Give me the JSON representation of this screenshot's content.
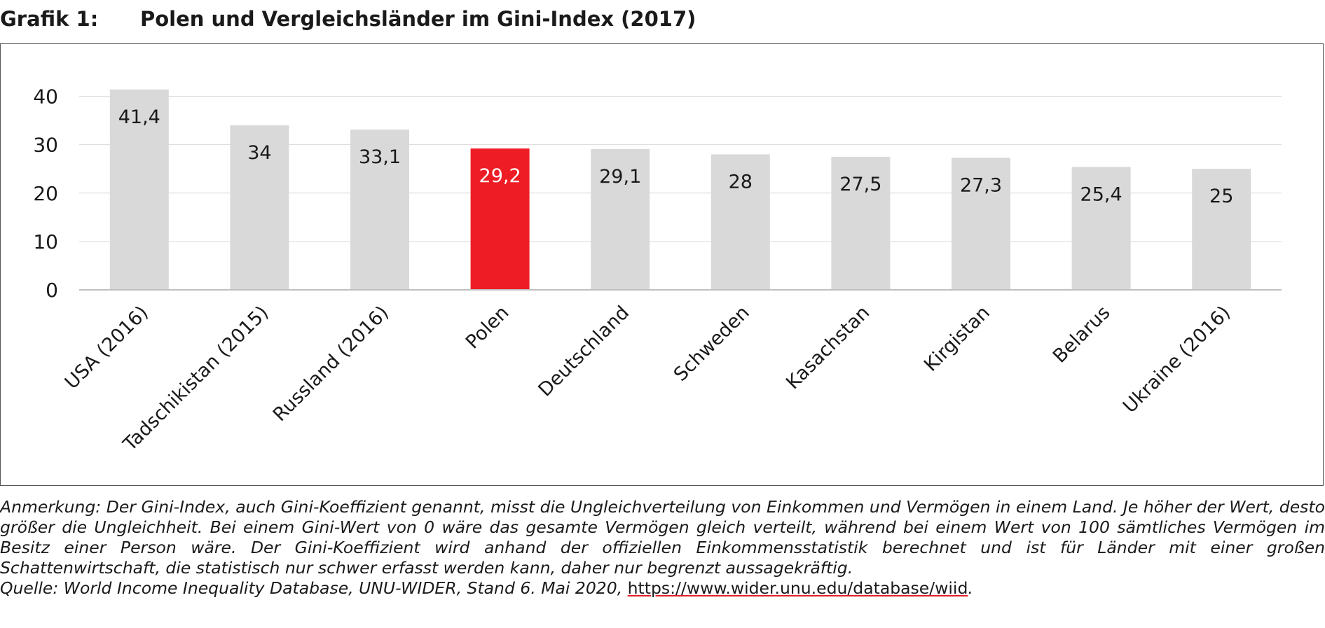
{
  "figure": {
    "label": "Grafik 1:",
    "title": "Polen und Vergleichsländer im Gini-Index (2017)"
  },
  "colors": {
    "default_bar": "#d9d9d9",
    "highlight_bar": "#ee1d25",
    "gridline": "#d9d9d9",
    "axis": "#bfbfbf"
  },
  "chart_data": {
    "type": "bar",
    "title": "",
    "xlabel": "",
    "ylabel": "",
    "ylim": [
      0,
      40
    ],
    "yticks": [
      0,
      10,
      20,
      30,
      40
    ],
    "grid": true,
    "categories": [
      "USA (2016)",
      "Tadschikistan (2015)",
      "Russland (2016)",
      "Polen",
      "Deutschland",
      "Schweden",
      "Kasachstan",
      "Kirgistan",
      "Belarus",
      "Ukraine (2016)"
    ],
    "values": [
      41.4,
      34,
      33.1,
      29.2,
      29.1,
      28,
      27.5,
      27.3,
      25.4,
      25
    ],
    "value_labels": [
      "41,4",
      "34",
      "33,1",
      "29,2",
      "29,1",
      "28",
      "27,5",
      "27,3",
      "25,4",
      "25"
    ],
    "highlight": "Polen"
  },
  "notes": {
    "annotation": "Anmerkung: Der Gini-Index, auch Gini-Koeffizient genannt, misst die Ungleichverteilung von Einkommen und Vermögen in einem Land. Je höher der Wert, desto größer die Ungleichheit. Bei einem Gini-Wert von 0 wäre das gesamte Vermögen gleich verteilt, während bei einem Wert von 100 sämtliches Vermögen im Besitz einer Person wäre. Der Gini-Koeffizient wird anhand der offiziellen Einkommensstatistik berechnet und ist für Länder mit einer großen Schattenwirtschaft, die statistisch nur schwer erfasst werden kann, daher nur begrenzt aussagekräftig.",
    "source_prefix": "Quelle: World Income Inequality Database, UNU-WIDER, Stand  6. Mai 2020, ",
    "source_url": "https://www.wider.unu.edu/database/wiid",
    "source_suffix": "."
  }
}
